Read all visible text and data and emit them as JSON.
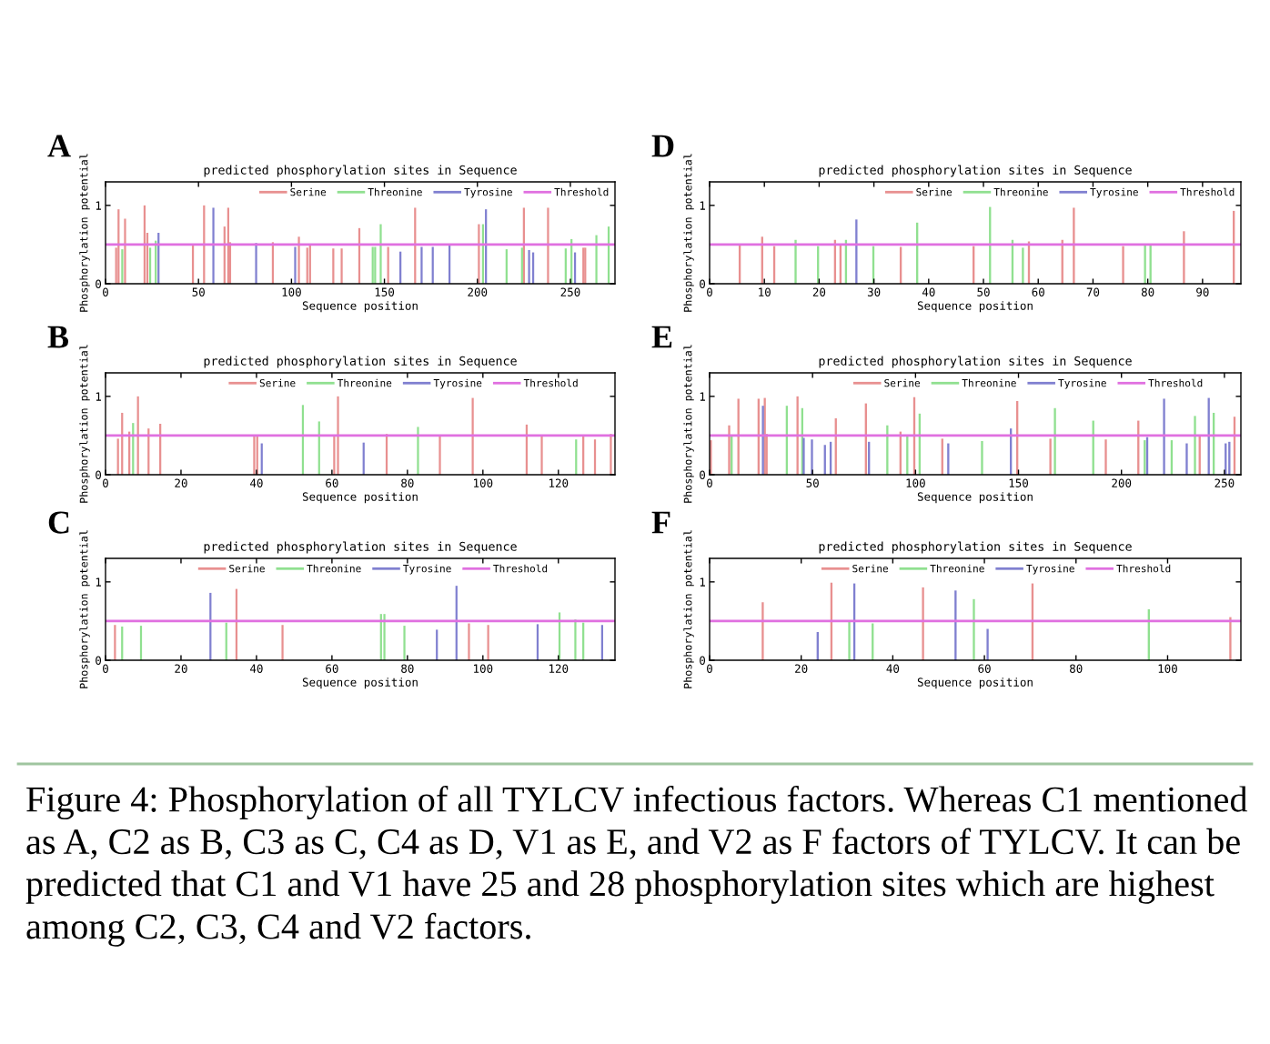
{
  "chart_data": [
    {
      "type": "bar",
      "title": "predicted phosphorylation sites in Sequence",
      "xlabel": "Sequence position",
      "ylabel": "Phosphorylation potential",
      "annotations": [
        "A"
      ],
      "xlim": [
        0,
        274
      ],
      "xticks": [
        0,
        50,
        100,
        150,
        200,
        250
      ],
      "ylim": [
        0,
        1.3
      ],
      "yticks": [
        0,
        1
      ],
      "legend": "top right",
      "grid": false,
      "ref_lines": [
        {
          "axis": "y",
          "value": 0.5,
          "label": "Threshold",
          "color": "#e070e0"
        }
      ],
      "series": [
        {
          "name": "Serine",
          "color": "#e89090",
          "x": [
            5.7,
            7,
            10.5,
            21,
            22.5,
            47,
            53,
            64,
            66,
            67,
            90,
            104,
            108.5,
            110,
            122.5,
            127,
            136.5,
            152,
            166.5,
            200.8,
            225,
            238,
            257,
            258
          ],
          "values": [
            0.46,
            0.95,
            0.83,
            1.0,
            0.65,
            0.49,
            1.0,
            0.73,
            0.97,
            0.53,
            0.53,
            0.6,
            0.46,
            0.5,
            0.45,
            0.45,
            0.71,
            0.47,
            0.97,
            0.76,
            0.97,
            0.97,
            0.46,
            0.46
          ]
        },
        {
          "name": "Threonine",
          "color": "#90e090",
          "x": [
            9,
            24,
            27,
            143.7,
            145,
            148,
            203,
            215.7,
            224,
            247.5,
            250.6,
            264,
            270.6
          ],
          "values": [
            0.44,
            0.46,
            0.55,
            0.47,
            0.47,
            0.76,
            0.76,
            0.44,
            0.46,
            0.45,
            0.57,
            0.62,
            0.73
          ]
        },
        {
          "name": "Tyrosine",
          "color": "#8080d0",
          "x": [
            28.5,
            58,
            81,
            102,
            158.6,
            170,
            176,
            185,
            204.6,
            227.8,
            230,
            252.5
          ],
          "values": [
            0.65,
            0.97,
            0.52,
            0.47,
            0.41,
            0.47,
            0.47,
            0.5,
            0.95,
            0.43,
            0.4,
            0.4
          ]
        }
      ]
    },
    {
      "type": "bar",
      "title": "predicted phosphorylation sites in Sequence",
      "xlabel": "Sequence position",
      "ylabel": "Phosphorylation potential",
      "annotations": [
        "D"
      ],
      "xlim": [
        0,
        97
      ],
      "xticks": [
        0,
        10,
        20,
        30,
        40,
        50,
        60,
        70,
        80,
        90
      ],
      "ylim": [
        0,
        1.3
      ],
      "yticks": [
        0,
        1
      ],
      "legend": "top right",
      "grid": false,
      "ref_lines": [
        {
          "axis": "y",
          "value": 0.5,
          "label": "Threshold",
          "color": "#e070e0"
        }
      ],
      "series": [
        {
          "name": "Serine",
          "color": "#e89090",
          "x": [
            5.5,
            9.6,
            11.8,
            22.9,
            23.9,
            34.9,
            48.2,
            58.3,
            64.4,
            66.5,
            75.5,
            86.6,
            95.7
          ],
          "values": [
            0.49,
            0.6,
            0.48,
            0.56,
            0.49,
            0.47,
            0.48,
            0.54,
            0.56,
            0.97,
            0.48,
            0.67,
            0.93
          ]
        },
        {
          "name": "Threonine",
          "color": "#90e090",
          "x": [
            15.7,
            19.8,
            24.9,
            29.9,
            37.9,
            51.2,
            55.3,
            57.2,
            79.5,
            80.5
          ],
          "values": [
            0.56,
            0.48,
            0.56,
            0.48,
            0.78,
            0.98,
            0.56,
            0.46,
            0.5,
            0.49
          ]
        },
        {
          "name": "Tyrosine",
          "color": "#8080d0",
          "x": [
            26.8
          ],
          "values": [
            0.82
          ]
        }
      ]
    },
    {
      "type": "bar",
      "title": "predicted phosphorylation sites in Sequence",
      "xlabel": "Sequence position",
      "ylabel": "Phosphorylation potential",
      "annotations": [
        "B"
      ],
      "xlim": [
        0,
        135
      ],
      "xticks": [
        0,
        20,
        40,
        60,
        80,
        100,
        120
      ],
      "ylim": [
        0,
        1.3
      ],
      "yticks": [
        0,
        1
      ],
      "legend": "top right",
      "grid": false,
      "ref_lines": [
        {
          "axis": "y",
          "value": 0.5,
          "label": "Threshold",
          "color": "#e070e0"
        }
      ],
      "series": [
        {
          "name": "Serine",
          "color": "#e89090",
          "x": [
            3.3,
            4.4,
            6.3,
            8.6,
            11.4,
            14.5,
            39.4,
            40.2,
            60.6,
            61.6,
            74.5,
            88.6,
            97.3,
            111.6,
            115.6,
            126.6,
            129.7,
            133.9
          ],
          "values": [
            0.46,
            0.79,
            0.55,
            1.0,
            0.59,
            0.65,
            0.49,
            0.49,
            0.51,
            1.0,
            0.52,
            0.51,
            0.98,
            0.64,
            0.51,
            0.49,
            0.45,
            0.52
          ]
        },
        {
          "name": "Threonine",
          "color": "#90e090",
          "x": [
            7.3,
            52.3,
            56.6,
            82.8,
            124.7
          ],
          "values": [
            0.66,
            0.89,
            0.68,
            0.61,
            0.45
          ]
        },
        {
          "name": "Tyrosine",
          "color": "#8080d0",
          "x": [
            41.4,
            68.4
          ],
          "values": [
            0.4,
            0.41
          ]
        }
      ]
    },
    {
      "type": "bar",
      "title": "predicted phosphorylation sites in Sequence",
      "xlabel": "Sequence position",
      "ylabel": "Phosphorylation potential",
      "annotations": [
        "E"
      ],
      "xlim": [
        0,
        258
      ],
      "xticks": [
        0,
        50,
        100,
        150,
        200,
        250
      ],
      "ylim": [
        0,
        1.3
      ],
      "yticks": [
        0,
        1
      ],
      "legend": "top right",
      "grid": false,
      "ref_lines": [
        {
          "axis": "y",
          "value": 0.5,
          "label": "Threshold",
          "color": "#e070e0"
        }
      ],
      "series": [
        {
          "name": "Serine",
          "color": "#e89090",
          "x": [
            0.6,
            9.5,
            14,
            23.8,
            26.8,
            27.7,
            42.7,
            61.3,
            75.9,
            92.7,
            99.4,
            113,
            149.4,
            165.5,
            192.4,
            208.2,
            238,
            254.9
          ],
          "values": [
            0.44,
            0.63,
            0.97,
            0.97,
            0.98,
            0.52,
            1.0,
            0.72,
            0.91,
            0.55,
            0.99,
            0.46,
            0.94,
            0.46,
            0.45,
            0.69,
            0.49,
            0.74
          ]
        },
        {
          "name": "Threonine",
          "color": "#90e090",
          "x": [
            10.7,
            37.5,
            45,
            86.3,
            96,
            102,
            132.3,
            167.7,
            186.3,
            211.3,
            224.4,
            235.7,
            244.8
          ],
          "values": [
            0.49,
            0.88,
            0.85,
            0.63,
            0.49,
            0.78,
            0.43,
            0.85,
            0.69,
            0.44,
            0.44,
            0.75,
            0.79
          ]
        },
        {
          "name": "Tyrosine",
          "color": "#8080d0",
          "x": [
            25.9,
            45.7,
            49.7,
            56,
            58.8,
            77.4,
            115.9,
            146.3,
            212.5,
            220.7,
            231.7,
            242.4,
            250.6,
            252.4
          ],
          "values": [
            0.88,
            0.47,
            0.45,
            0.38,
            0.42,
            0.42,
            0.4,
            0.59,
            0.48,
            0.97,
            0.4,
            0.98,
            0.4,
            0.42
          ]
        }
      ]
    },
    {
      "type": "bar",
      "title": "predicted phosphorylation sites in Sequence",
      "xlabel": "Sequence position",
      "ylabel": "Phosphorylation potential",
      "annotations": [
        "C"
      ],
      "xlim": [
        0,
        135
      ],
      "xticks": [
        0,
        20,
        40,
        60,
        80,
        100,
        120
      ],
      "ylim": [
        0,
        1.3
      ],
      "yticks": [
        0,
        1
      ],
      "legend": "top right",
      "grid": false,
      "ref_lines": [
        {
          "axis": "y",
          "value": 0.5,
          "label": "Threshold",
          "color": "#e070e0"
        }
      ],
      "series": [
        {
          "name": "Serine",
          "color": "#e89090",
          "x": [
            2.5,
            34.7,
            46.9,
            96.3,
            101.4
          ],
          "values": [
            0.45,
            0.91,
            0.45,
            0.47,
            0.45
          ]
        },
        {
          "name": "Threonine",
          "color": "#90e090",
          "x": [
            4.4,
            9.4,
            32,
            73,
            73.9,
            79.2,
            120.3,
            124.5,
            126.6
          ],
          "values": [
            0.43,
            0.44,
            0.48,
            0.59,
            0.59,
            0.44,
            0.61,
            0.52,
            0.48
          ]
        },
        {
          "name": "Tyrosine",
          "color": "#8080d0",
          "x": [
            27.8,
            87.8,
            93,
            114.5,
            131.6
          ],
          "values": [
            0.86,
            0.39,
            0.95,
            0.46,
            0.45
          ]
        }
      ]
    },
    {
      "type": "bar",
      "title": "predicted phosphorylation sites in Sequence",
      "xlabel": "Sequence position",
      "ylabel": "Phosphorylation potential",
      "annotations": [
        "F",
        "Figure 4: Phosphorylation of all TYLCV infectious factors. Whereas C1 mentioned as A, C2 as B, C3 as C, C4 as D, V1 as E, and V2 as F factors of TYLCV. It can be predicted that C1 and V1 have 25 and 28 phosphorylation sites which are highest among C2, C3, C4 and V2 factors."
      ],
      "xlim": [
        0,
        116
      ],
      "xticks": [
        0,
        20,
        40,
        60,
        80,
        100
      ],
      "ylim": [
        0,
        1.3
      ],
      "yticks": [
        0,
        1
      ],
      "legend": "top right",
      "grid": false,
      "ref_lines": [
        {
          "axis": "y",
          "value": 0.5,
          "label": "Threshold",
          "color": "#e070e0"
        }
      ],
      "series": [
        {
          "name": "Serine",
          "color": "#e89090",
          "x": [
            11.6,
            26.6,
            46.6,
            70.5,
            113.7
          ],
          "values": [
            0.74,
            0.99,
            0.93,
            0.98,
            0.55
          ]
        },
        {
          "name": "Threonine",
          "color": "#90e090",
          "x": [
            30.5,
            35.6,
            57.7,
            95.9
          ],
          "values": [
            0.51,
            0.47,
            0.78,
            0.65
          ]
        },
        {
          "name": "Tyrosine",
          "color": "#8080d0",
          "x": [
            23.6,
            31.6,
            53.7,
            60.7
          ],
          "values": [
            0.36,
            0.98,
            0.89,
            0.4
          ]
        }
      ]
    }
  ]
}
